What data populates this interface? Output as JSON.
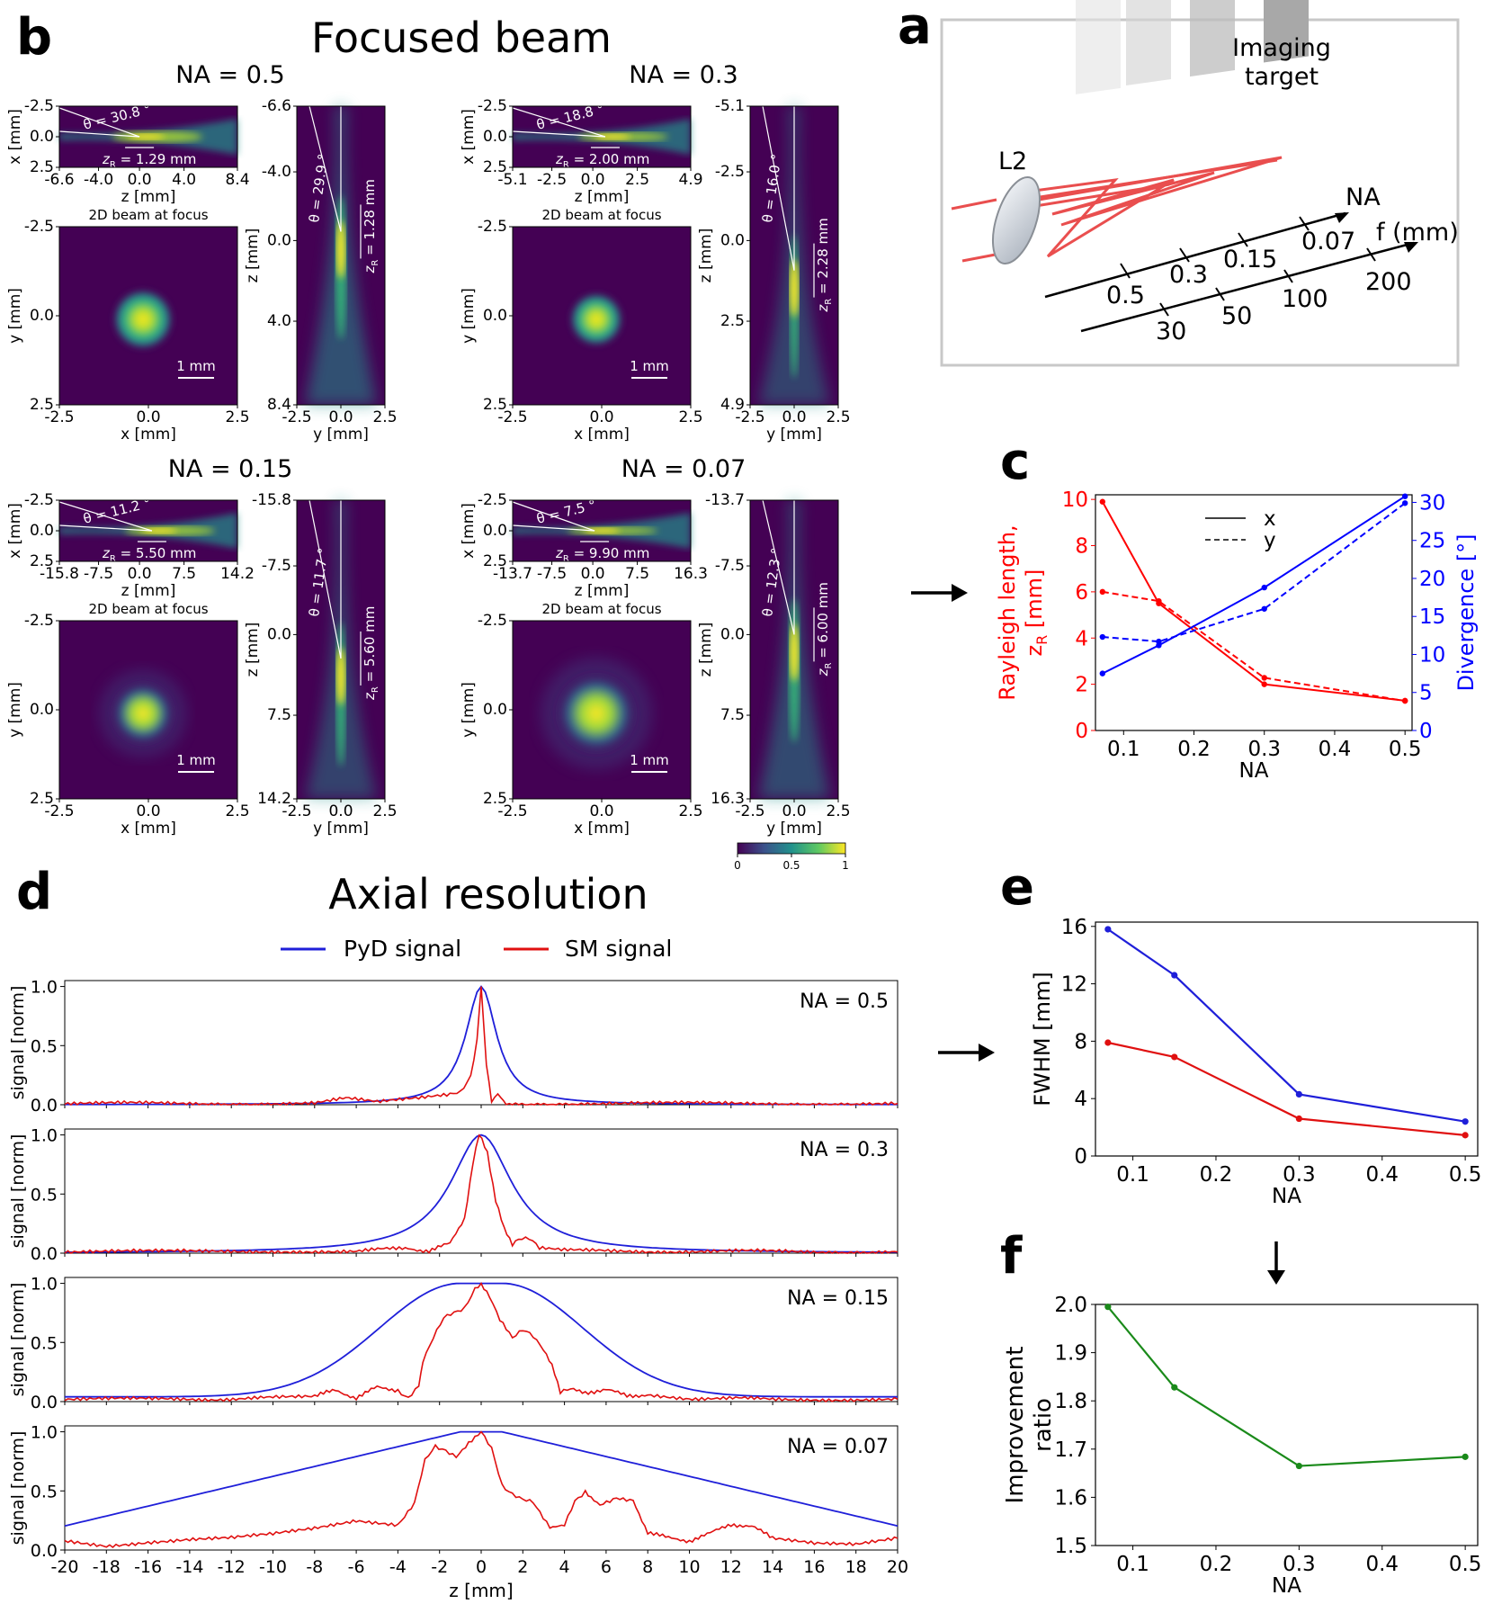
{
  "figure": {
    "panel_b_label": "b",
    "panel_a_label": "a",
    "panel_c_label": "c",
    "panel_d_label": "d",
    "panel_e_label": "e",
    "panel_f_label": "f",
    "panel_b_title": "Focused beam",
    "panel_d_title": "Axial resolution"
  },
  "colors": {
    "x_axis_red": "#ff0000",
    "y_axis_blue": "#0000ff",
    "pyd_blue": "#1f1fd9",
    "sm_red": "#e01010",
    "ratio_green": "#1a8a1a",
    "beam_dark": "#440154",
    "beam_bright": "#fde725"
  },
  "schematic": {
    "lens_label": "L2",
    "target_label_line1": "Imaging",
    "target_label_line2": "target",
    "na_axis_label": "NA",
    "f_axis_label": "f (mm)",
    "na_ticks": [
      "0.5",
      "0.3",
      "0.15",
      "0.07"
    ],
    "f_ticks": [
      "30",
      "50",
      "100",
      "200"
    ]
  },
  "beams": [
    {
      "na_title": "NA = 0.5",
      "top_theta": "θ = 30.8 °",
      "top_zr": "z",
      "top_zr_sub": "R",
      "top_zr_val": " = 1.29 mm",
      "top_ylabel": "x [mm]",
      "top_yticks": [
        "-2.5",
        "0.0",
        "2.5"
      ],
      "top_xticks": [
        "-6.6",
        "-4.0",
        "0.0",
        "4.0",
        "8.4"
      ],
      "top_xlabel": "z [mm]",
      "focus_title": "2D beam at focus",
      "focus_ylabel": "y [mm]",
      "focus_yticks": [
        "-2.5",
        "0.0",
        "2.5"
      ],
      "focus_xticks": [
        "-2.5",
        "0.0",
        "2.5"
      ],
      "focus_xlabel": "x [mm]",
      "scale_label": "1 mm",
      "side_ylabel": "z [mm]",
      "side_yticks": [
        "-6.6",
        "-4.0",
        "0.0",
        "4.0",
        "8.4"
      ],
      "side_xticks": [
        "-2.5",
        "0.0",
        "2.5"
      ],
      "side_xlabel": "y [mm]",
      "side_theta": "θ = 29.9 °",
      "side_zr_val": " = 1.28 mm"
    },
    {
      "na_title": "NA = 0.3",
      "top_theta": "θ = 18.8 °",
      "top_zr": "z",
      "top_zr_sub": "R",
      "top_zr_val": " = 2.00 mm",
      "top_ylabel": "x [mm]",
      "top_yticks": [
        "-2.5",
        "0.0",
        "2.5"
      ],
      "top_xticks": [
        "-5.1",
        "-2.5",
        "0.0",
        "2.5",
        "4.9"
      ],
      "top_xlabel": "z [mm]",
      "focus_title": "2D beam at focus",
      "focus_ylabel": "y [mm]",
      "focus_yticks": [
        "-2.5",
        "0.0",
        "2.5"
      ],
      "focus_xticks": [
        "-2.5",
        "0.0",
        "2.5"
      ],
      "focus_xlabel": "x [mm]",
      "scale_label": "1 mm",
      "side_ylabel": "z [mm]",
      "side_yticks": [
        "-5.1",
        "-2.5",
        "0.0",
        "2.5",
        "4.9"
      ],
      "side_xticks": [
        "-2.5",
        "0.0",
        "2.5"
      ],
      "side_xlabel": "y [mm]",
      "side_theta": "θ = 16.0 °",
      "side_zr_val": " = 2.28 mm"
    },
    {
      "na_title": "NA = 0.15",
      "top_theta": "θ = 11.2 °",
      "top_zr": "z",
      "top_zr_sub": "R",
      "top_zr_val": " = 5.50 mm",
      "top_ylabel": "x [mm]",
      "top_yticks": [
        "-2.5",
        "0.0",
        "2.5"
      ],
      "top_xticks": [
        "-15.8",
        "-7.5",
        "0.0",
        "7.5",
        "14.2"
      ],
      "top_xlabel": "z [mm]",
      "focus_title": "2D beam at focus",
      "focus_ylabel": "y [mm]",
      "focus_yticks": [
        "-2.5",
        "0.0",
        "2.5"
      ],
      "focus_xticks": [
        "-2.5",
        "0.0",
        "2.5"
      ],
      "focus_xlabel": "x [mm]",
      "scale_label": "1 mm",
      "side_ylabel": "z [mm]",
      "side_yticks": [
        "-15.8",
        "-7.5",
        "0.0",
        "7.5",
        "14.2"
      ],
      "side_xticks": [
        "-2.5",
        "0.0",
        "2.5"
      ],
      "side_xlabel": "y [mm]",
      "side_theta": "θ = 11.7 °",
      "side_zr_val": " = 5.60 mm"
    },
    {
      "na_title": "NA = 0.07",
      "top_theta": "θ = 7.5 °",
      "top_zr": "z",
      "top_zr_sub": "R",
      "top_zr_val": " = 9.90 mm",
      "top_ylabel": "x [mm]",
      "top_yticks": [
        "-2.5",
        "0.0",
        "2.5"
      ],
      "top_xticks": [
        "-13.7",
        "-7.5",
        "0.0",
        "7.5",
        "16.3"
      ],
      "top_xlabel": "z [mm]",
      "focus_title": "2D beam at focus",
      "focus_ylabel": "y [mm]",
      "focus_yticks": [
        "-2.5",
        "0.0",
        "2.5"
      ],
      "focus_xticks": [
        "-2.5",
        "0.0",
        "2.5"
      ],
      "focus_xlabel": "x [mm]",
      "scale_label": "1 mm",
      "side_ylabel": "z [mm]",
      "side_yticks": [
        "-13.7",
        "-7.5",
        "0.0",
        "7.5",
        "16.3"
      ],
      "side_xticks": [
        "-2.5",
        "0.0",
        "2.5"
      ],
      "side_xlabel": "y [mm]",
      "side_theta": "θ = 12.3 °",
      "side_zr_val": " = 6.00 mm"
    }
  ],
  "colorbar": {
    "ticks": [
      "0",
      "0.5",
      "1"
    ]
  },
  "chart_data": [
    {
      "id": "c",
      "type": "line",
      "categories": [
        0.07,
        0.15,
        0.3,
        0.5
      ],
      "xticks": [
        "0.1",
        "0.2",
        "0.3",
        "0.4",
        "0.5"
      ],
      "xlim": [
        0.06,
        0.51
      ],
      "xlabel": "NA",
      "ylabel_left_line1": "Rayleigh length,",
      "ylabel_left_line2": "z",
      "ylabel_left_sub": "R",
      "ylabel_left_unit": " [mm]",
      "ylim_left": [
        0,
        10.2
      ],
      "yticks_left": [
        "0",
        "2",
        "4",
        "6",
        "8",
        "10"
      ],
      "ylabel_right": "Divergence [°]",
      "ylim_right": [
        0,
        31
      ],
      "yticks_right": [
        "0",
        "5",
        "10",
        "15",
        "20",
        "25",
        "30"
      ],
      "legend": [
        "x",
        "y"
      ],
      "series": [
        {
          "name": "Rayleigh x",
          "axis": "left",
          "style": "solid",
          "color": "#ff0000",
          "values": [
            9.9,
            5.5,
            2.0,
            1.29
          ]
        },
        {
          "name": "Rayleigh y",
          "axis": "left",
          "style": "dashed",
          "color": "#ff0000",
          "values": [
            6.0,
            5.6,
            2.28,
            1.28
          ]
        },
        {
          "name": "Divergence x",
          "axis": "right",
          "style": "solid",
          "color": "#0000ff",
          "values": [
            7.5,
            11.2,
            18.8,
            30.8
          ]
        },
        {
          "name": "Divergence y",
          "axis": "right",
          "style": "dashed",
          "color": "#0000ff",
          "values": [
            12.3,
            11.7,
            16.0,
            29.9
          ]
        }
      ]
    },
    {
      "id": "d",
      "type": "line",
      "title": "Axial resolution",
      "legend": [
        "PyD signal",
        "SM signal"
      ],
      "xlabel": "z [mm]",
      "ylabel": "signal [norm]",
      "xlim": [
        -20,
        20
      ],
      "ylim": [
        0,
        1.05
      ],
      "xticks": [
        "-20",
        "-18",
        "-16",
        "-14",
        "-12",
        "-10",
        "-8",
        "-6",
        "-4",
        "-2",
        "0",
        "2",
        "4",
        "6",
        "8",
        "10",
        "12",
        "14",
        "16",
        "18",
        "20"
      ],
      "yticks": [
        "0.0",
        "0.5",
        "1.0"
      ],
      "panels": [
        {
          "label": "NA = 0.5",
          "pyd_hw": 0.9,
          "pyd_shape": "lorentz",
          "pyd_base": 0.0,
          "sm_points": [
            [
              -20,
              0.01
            ],
            [
              -8,
              0.01
            ],
            [
              -6.5,
              0.05
            ],
            [
              -5,
              0.02
            ],
            [
              -3,
              0.05
            ],
            [
              -1.5,
              0.08
            ],
            [
              -1,
              0.1
            ],
            [
              -0.5,
              0.25
            ],
            [
              -0.2,
              0.55
            ],
            [
              0,
              1.0
            ],
            [
              0.25,
              0.35
            ],
            [
              0.5,
              0.02
            ],
            [
              0.8,
              0.08
            ],
            [
              1.2,
              0.01
            ],
            [
              20,
              0.01
            ]
          ]
        },
        {
          "label": "NA = 0.3",
          "pyd_hw": 1.8,
          "pyd_shape": "lorentz",
          "pyd_base": 0.0,
          "sm_points": [
            [
              -20,
              0.01
            ],
            [
              -6,
              0.02
            ],
            [
              -3.5,
              0.04
            ],
            [
              -2.5,
              0.02
            ],
            [
              -1.5,
              0.08
            ],
            [
              -0.8,
              0.3
            ],
            [
              -0.4,
              0.75
            ],
            [
              -0.1,
              1.0
            ],
            [
              0.3,
              0.85
            ],
            [
              0.7,
              0.45
            ],
            [
              1.1,
              0.2
            ],
            [
              1.5,
              0.08
            ],
            [
              1.8,
              0.13
            ],
            [
              2.3,
              0.12
            ],
            [
              2.8,
              0.04
            ],
            [
              4,
              0.02
            ],
            [
              20,
              0.01
            ]
          ]
        },
        {
          "label": "NA = 0.15",
          "pyd_hw": 5.5,
          "pyd_shape": "plateau",
          "pyd_base": 0.04,
          "sm_points": [
            [
              -20,
              0.02
            ],
            [
              -14,
              0.02
            ],
            [
              -10,
              0.03
            ],
            [
              -8,
              0.04
            ],
            [
              -7,
              0.1
            ],
            [
              -6,
              0.03
            ],
            [
              -5,
              0.12
            ],
            [
              -4,
              0.1
            ],
            [
              -3.5,
              0.03
            ],
            [
              -3,
              0.12
            ],
            [
              -2.8,
              0.35
            ],
            [
              -2.3,
              0.55
            ],
            [
              -1.8,
              0.7
            ],
            [
              -1.3,
              0.75
            ],
            [
              -0.8,
              0.8
            ],
            [
              -0.3,
              0.95
            ],
            [
              0,
              1.0
            ],
            [
              0.4,
              0.9
            ],
            [
              0.9,
              0.7
            ],
            [
              1.5,
              0.55
            ],
            [
              2.0,
              0.6
            ],
            [
              2.5,
              0.55
            ],
            [
              3.0,
              0.45
            ],
            [
              3.4,
              0.3
            ],
            [
              3.8,
              0.08
            ],
            [
              4.3,
              0.1
            ],
            [
              5,
              0.08
            ],
            [
              6,
              0.1
            ],
            [
              7,
              0.05
            ],
            [
              8,
              0.06
            ],
            [
              10,
              0.03
            ],
            [
              14,
              0.02
            ],
            [
              20,
              0.02
            ]
          ]
        },
        {
          "label": "NA = 0.07",
          "pyd_hw": 11,
          "pyd_shape": "tent",
          "pyd_base": 0.12,
          "sm_points": [
            [
              -20,
              0.08
            ],
            [
              -18,
              0.04
            ],
            [
              -16,
              0.07
            ],
            [
              -14,
              0.09
            ],
            [
              -12,
              0.1
            ],
            [
              -10,
              0.13
            ],
            [
              -8,
              0.18
            ],
            [
              -6,
              0.25
            ],
            [
              -4,
              0.22
            ],
            [
              -3.2,
              0.4
            ],
            [
              -2.7,
              0.75
            ],
            [
              -2.2,
              0.88
            ],
            [
              -1.7,
              0.85
            ],
            [
              -1.2,
              0.78
            ],
            [
              -0.6,
              0.9
            ],
            [
              0,
              1.0
            ],
            [
              0.5,
              0.85
            ],
            [
              1.0,
              0.55
            ],
            [
              1.5,
              0.48
            ],
            [
              2,
              0.42
            ],
            [
              2.5,
              0.4
            ],
            [
              3.3,
              0.2
            ],
            [
              4,
              0.2
            ],
            [
              4.5,
              0.42
            ],
            [
              5,
              0.5
            ],
            [
              5.7,
              0.38
            ],
            [
              6.5,
              0.45
            ],
            [
              7.3,
              0.42
            ],
            [
              8,
              0.15
            ],
            [
              9,
              0.1
            ],
            [
              10,
              0.08
            ],
            [
              11,
              0.14
            ],
            [
              12,
              0.22
            ],
            [
              13,
              0.2
            ],
            [
              14,
              0.1
            ],
            [
              16,
              0.05
            ],
            [
              18,
              0.04
            ],
            [
              20,
              0.1
            ]
          ]
        }
      ]
    },
    {
      "id": "e",
      "type": "line",
      "categories": [
        0.07,
        0.15,
        0.3,
        0.5
      ],
      "xticks": [
        "0.1",
        "0.2",
        "0.3",
        "0.4",
        "0.5"
      ],
      "xlim": [
        0.055,
        0.515
      ],
      "xlabel": "NA",
      "ylabel": "FWHM [mm]",
      "ylim": [
        0,
        16.3
      ],
      "yticks": [
        "0",
        "4",
        "8",
        "12",
        "16"
      ],
      "series": [
        {
          "name": "PyD signal",
          "color": "#1f1fd9",
          "values": [
            15.8,
            12.6,
            4.3,
            2.4
          ]
        },
        {
          "name": "SM signal",
          "color": "#e01010",
          "values": [
            7.9,
            6.9,
            2.6,
            1.45
          ]
        }
      ]
    },
    {
      "id": "f",
      "type": "line",
      "categories": [
        0.07,
        0.15,
        0.3,
        0.5
      ],
      "xticks": [
        "0.1",
        "0.2",
        "0.3",
        "0.4",
        "0.5"
      ],
      "xlim": [
        0.055,
        0.515
      ],
      "xlabel": "NA",
      "ylabel_line1": "Improvement",
      "ylabel_line2": "ratio",
      "ylim": [
        1.5,
        2.0
      ],
      "yticks": [
        "1.5",
        "1.6",
        "1.7",
        "1.8",
        "1.9",
        "2.0"
      ],
      "series": [
        {
          "name": "ratio",
          "color": "#1a8a1a",
          "values": [
            1.995,
            1.828,
            1.665,
            1.684
          ]
        }
      ]
    }
  ]
}
